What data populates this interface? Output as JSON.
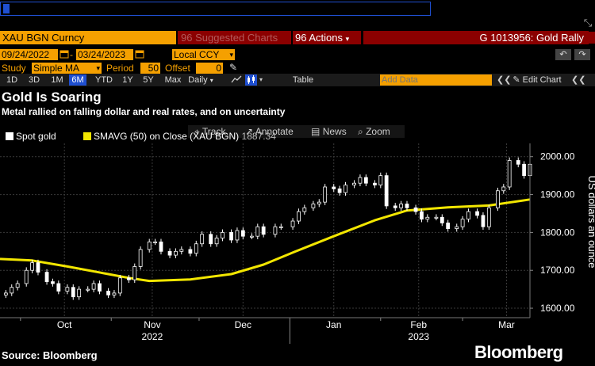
{
  "command": {
    "value": ""
  },
  "header": {
    "security": "XAU BGN Curncy",
    "suggested": "96 Suggested Charts",
    "actions": "96 Actions",
    "chart_name": "G 1013956: Gold Rally"
  },
  "controls": {
    "date_from": "09/24/2022",
    "date_to": "03/24/2023",
    "currency": "Local CCY",
    "study_label": "Study",
    "study_value": "Simple MA",
    "period_label": "Period",
    "period_value": "50",
    "offset_label": "Offset",
    "offset_value": "0"
  },
  "range_bar": {
    "ranges": [
      "1D",
      "3D",
      "1M",
      "6M",
      "YTD",
      "1Y",
      "5Y",
      "Max"
    ],
    "active": "6M",
    "frequency": "Daily",
    "table_label": "Table",
    "add_data_placeholder": "Add Data",
    "edit_chart": "Edit Chart"
  },
  "chart_toolbar": {
    "track": "Track",
    "annotate": "Annotate",
    "news": "News",
    "zoom": "Zoom"
  },
  "colors": {
    "accent_orange": "#f5a000",
    "header_red": "#8b0000",
    "ma_yellow": "#f2e600",
    "active_blue": "#1f4fd0"
  },
  "chart_data": {
    "type": "line",
    "title": "Gold Is Soaring",
    "subtitle": "Metal rallied on falling dollar and real rates, and on uncertainty",
    "ylabel": "US dollars an ounce",
    "ylim": [
      1575,
      2035
    ],
    "yticks": [
      1600,
      1700,
      1800,
      1900,
      2000
    ],
    "ytick_labels": [
      "1600.00",
      "1700.00",
      "1800.00",
      "1900.00",
      "2000.00"
    ],
    "xlim": [
      "2022-09-24",
      "2023-03-24"
    ],
    "xticks": [
      {
        "date": "2022-10-16",
        "label": "Oct"
      },
      {
        "date": "2022-11-15",
        "label": "Nov"
      },
      {
        "date": "2022-12-16",
        "label": "Dec"
      },
      {
        "date": "2023-01-16",
        "label": "Jan"
      },
      {
        "date": "2023-02-14",
        "label": "Feb"
      },
      {
        "date": "2023-03-16",
        "label": "Mar"
      }
    ],
    "year_labels": [
      {
        "date": "2022-11-15",
        "label": "2022"
      },
      {
        "date": "2023-02-14",
        "label": "2023"
      }
    ],
    "grid": true,
    "legend_position": "top-left",
    "series": [
      {
        "name": "Spot gold",
        "style": "candlestick",
        "points": [
          [
            "2022-09-26",
            1640
          ],
          [
            "2022-09-28",
            1655
          ],
          [
            "2022-09-30",
            1665
          ],
          [
            "2022-10-03",
            1700
          ],
          [
            "2022-10-05",
            1720
          ],
          [
            "2022-10-07",
            1695
          ],
          [
            "2022-10-10",
            1670
          ],
          [
            "2022-10-12",
            1665
          ],
          [
            "2022-10-14",
            1645
          ],
          [
            "2022-10-17",
            1655
          ],
          [
            "2022-10-19",
            1630
          ],
          [
            "2022-10-21",
            1650
          ],
          [
            "2022-10-24",
            1650
          ],
          [
            "2022-10-26",
            1665
          ],
          [
            "2022-10-28",
            1645
          ],
          [
            "2022-10-31",
            1635
          ],
          [
            "2022-11-02",
            1640
          ],
          [
            "2022-11-04",
            1680
          ],
          [
            "2022-11-07",
            1675
          ],
          [
            "2022-11-09",
            1710
          ],
          [
            "2022-11-11",
            1755
          ],
          [
            "2022-11-14",
            1775
          ],
          [
            "2022-11-16",
            1775
          ],
          [
            "2022-11-18",
            1750
          ],
          [
            "2022-11-21",
            1740
          ],
          [
            "2022-11-23",
            1750
          ],
          [
            "2022-11-25",
            1755
          ],
          [
            "2022-11-28",
            1745
          ],
          [
            "2022-11-30",
            1770
          ],
          [
            "2022-12-02",
            1795
          ],
          [
            "2022-12-05",
            1770
          ],
          [
            "2022-12-07",
            1785
          ],
          [
            "2022-12-09",
            1800
          ],
          [
            "2022-12-12",
            1780
          ],
          [
            "2022-12-14",
            1805
          ],
          [
            "2022-12-16",
            1790
          ],
          [
            "2022-12-19",
            1790
          ],
          [
            "2022-12-21",
            1815
          ],
          [
            "2022-12-23",
            1795
          ],
          [
            "2022-12-27",
            1815
          ],
          [
            "2022-12-29",
            1815
          ],
          [
            "2023-01-02",
            1830
          ],
          [
            "2023-01-04",
            1855
          ],
          [
            "2023-01-06",
            1865
          ],
          [
            "2023-01-09",
            1875
          ],
          [
            "2023-01-11",
            1880
          ],
          [
            "2023-01-13",
            1920
          ],
          [
            "2023-01-16",
            1915
          ],
          [
            "2023-01-18",
            1905
          ],
          [
            "2023-01-20",
            1925
          ],
          [
            "2023-01-23",
            1930
          ],
          [
            "2023-01-25",
            1945
          ],
          [
            "2023-01-27",
            1930
          ],
          [
            "2023-01-30",
            1925
          ],
          [
            "2023-02-01",
            1950
          ],
          [
            "2023-02-03",
            1870
          ],
          [
            "2023-02-06",
            1865
          ],
          [
            "2023-02-08",
            1875
          ],
          [
            "2023-02-10",
            1865
          ],
          [
            "2023-02-13",
            1855
          ],
          [
            "2023-02-15",
            1835
          ],
          [
            "2023-02-17",
            1840
          ],
          [
            "2023-02-20",
            1840
          ],
          [
            "2023-02-22",
            1825
          ],
          [
            "2023-02-24",
            1810
          ],
          [
            "2023-02-27",
            1815
          ],
          [
            "2023-03-01",
            1835
          ],
          [
            "2023-03-03",
            1855
          ],
          [
            "2023-03-06",
            1845
          ],
          [
            "2023-03-08",
            1815
          ],
          [
            "2023-03-10",
            1865
          ],
          [
            "2023-03-13",
            1910
          ],
          [
            "2023-03-15",
            1920
          ],
          [
            "2023-03-17",
            1990
          ],
          [
            "2023-03-20",
            1980
          ],
          [
            "2023-03-22",
            1950
          ],
          [
            "2023-03-24",
            1980
          ]
        ]
      },
      {
        "name": "SMAVG (50)  on Close (XAU BGN)",
        "value_label": "1887.34",
        "style": "line",
        "points": [
          [
            "2022-09-24",
            1730
          ],
          [
            "2022-10-05",
            1726
          ],
          [
            "2022-10-17",
            1710
          ],
          [
            "2022-10-31",
            1690
          ],
          [
            "2022-11-07",
            1680
          ],
          [
            "2022-11-14",
            1672
          ],
          [
            "2022-11-28",
            1676
          ],
          [
            "2022-12-12",
            1690
          ],
          [
            "2022-12-23",
            1715
          ],
          [
            "2023-01-03",
            1750
          ],
          [
            "2023-01-16",
            1790
          ],
          [
            "2023-01-30",
            1832
          ],
          [
            "2023-02-10",
            1858
          ],
          [
            "2023-02-24",
            1866
          ],
          [
            "2023-03-10",
            1871
          ],
          [
            "2023-03-24",
            1887
          ]
        ]
      }
    ]
  },
  "footer": {
    "source": "Source: Bloomberg",
    "brand": "Bloomberg"
  }
}
